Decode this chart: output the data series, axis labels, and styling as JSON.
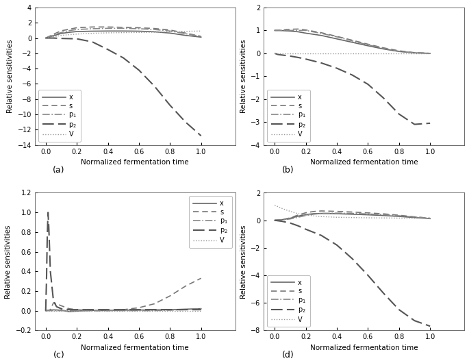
{
  "xlabel": "Normalized fermentation time",
  "ylabel": "Relative sensitivities",
  "legend_labels": [
    "x",
    "s",
    "p1",
    "p2",
    "V"
  ],
  "subplot_a": {
    "xlim": [
      -0.07,
      1.22
    ],
    "ylim": [
      -14,
      4
    ],
    "yticks": [
      -14,
      -12,
      -10,
      -8,
      -6,
      -4,
      -2,
      0,
      2,
      4
    ],
    "xticks": [
      0.0,
      0.2,
      0.4,
      0.6,
      0.8,
      1.0
    ],
    "label": "(a)",
    "legend_loc": "lower left",
    "curves": {
      "x": {
        "t": [
          0.0,
          0.05,
          0.1,
          0.15,
          0.2,
          0.3,
          0.4,
          0.5,
          0.6,
          0.7,
          0.8,
          0.9,
          1.0
        ],
        "v": [
          0.0,
          0.3,
          0.6,
          0.75,
          0.85,
          0.9,
          0.92,
          0.92,
          0.9,
          0.82,
          0.65,
          0.35,
          0.12
        ]
      },
      "s": {
        "t": [
          0.0,
          0.05,
          0.1,
          0.15,
          0.2,
          0.3,
          0.4,
          0.5,
          0.6,
          0.7,
          0.8,
          0.9,
          1.0
        ],
        "v": [
          0.0,
          0.5,
          0.95,
          1.15,
          1.35,
          1.45,
          1.45,
          1.4,
          1.35,
          1.25,
          1.05,
          0.65,
          0.22
        ]
      },
      "p1": {
        "t": [
          0.0,
          0.05,
          0.1,
          0.15,
          0.2,
          0.3,
          0.4,
          0.5,
          0.6,
          0.7,
          0.8,
          0.9,
          1.0
        ],
        "v": [
          0.0,
          0.4,
          0.72,
          0.97,
          1.12,
          1.22,
          1.27,
          1.27,
          1.22,
          1.12,
          0.92,
          0.57,
          0.22
        ]
      },
      "p2": {
        "t": [
          0.0,
          0.05,
          0.1,
          0.2,
          0.3,
          0.4,
          0.5,
          0.6,
          0.7,
          0.8,
          0.9,
          1.0
        ],
        "v": [
          0.0,
          0.0,
          -0.05,
          -0.1,
          -0.5,
          -1.5,
          -2.6,
          -4.2,
          -6.3,
          -8.8,
          -11.0,
          -12.8
        ]
      },
      "V": {
        "t": [
          0.0,
          0.05,
          0.1,
          0.2,
          0.3,
          0.4,
          0.5,
          0.6,
          0.7,
          0.8,
          0.9,
          1.0
        ],
        "v": [
          0.0,
          0.15,
          0.35,
          0.52,
          0.62,
          0.68,
          0.71,
          0.73,
          0.76,
          0.82,
          0.88,
          0.92
        ]
      }
    }
  },
  "subplot_b": {
    "xlim": [
      -0.07,
      1.22
    ],
    "ylim": [
      -4,
      2
    ],
    "yticks": [
      -4,
      -3,
      -2,
      -1,
      0,
      1,
      2
    ],
    "xticks": [
      0.0,
      0.2,
      0.4,
      0.6,
      0.8,
      1.0
    ],
    "label": "(b)",
    "legend_loc": "lower left",
    "curves": {
      "x": {
        "t": [
          0.0,
          0.02,
          0.05,
          0.1,
          0.15,
          0.2,
          0.3,
          0.4,
          0.5,
          0.6,
          0.7,
          0.8,
          0.9,
          1.0
        ],
        "v": [
          1.0,
          1.0,
          0.99,
          0.97,
          0.94,
          0.88,
          0.78,
          0.63,
          0.48,
          0.33,
          0.19,
          0.08,
          0.02,
          0.0
        ]
      },
      "s": {
        "t": [
          0.0,
          0.02,
          0.05,
          0.1,
          0.15,
          0.2,
          0.3,
          0.4,
          0.5,
          0.6,
          0.7,
          0.8,
          0.9,
          1.0
        ],
        "v": [
          1.0,
          1.0,
          1.02,
          1.05,
          1.06,
          1.02,
          0.9,
          0.74,
          0.57,
          0.4,
          0.24,
          0.11,
          0.03,
          0.0
        ]
      },
      "p1": {
        "t": [
          0.0,
          0.02,
          0.05,
          0.1,
          0.15,
          0.2,
          0.3,
          0.4,
          0.5,
          0.6,
          0.7,
          0.8,
          0.9,
          1.0
        ],
        "v": [
          1.0,
          1.0,
          1.0,
          1.0,
          1.0,
          1.0,
          0.87,
          0.72,
          0.54,
          0.37,
          0.22,
          0.09,
          0.02,
          0.0
        ]
      },
      "p2": {
        "t": [
          0.0,
          0.02,
          0.1,
          0.15,
          0.2,
          0.3,
          0.4,
          0.5,
          0.6,
          0.7,
          0.8,
          0.9,
          1.0
        ],
        "v": [
          0.0,
          -0.05,
          -0.12,
          -0.18,
          -0.25,
          -0.42,
          -0.65,
          -0.95,
          -1.35,
          -1.95,
          -2.65,
          -3.1,
          -3.05
        ]
      },
      "V": {
        "t": [
          0.0,
          0.05,
          0.1,
          0.2,
          0.3,
          0.4,
          0.5,
          0.6,
          0.7,
          0.8,
          0.9,
          1.0
        ],
        "v": [
          0.0,
          0.0,
          0.0,
          0.0,
          0.0,
          0.0,
          0.0,
          0.0,
          0.0,
          0.0,
          0.0,
          0.0
        ]
      }
    }
  },
  "subplot_c": {
    "xlim": [
      -0.07,
      1.22
    ],
    "ylim": [
      -0.2,
      1.2
    ],
    "yticks": [
      -0.2,
      0.0,
      0.2,
      0.4,
      0.6,
      0.8,
      1.0,
      1.2
    ],
    "xticks": [
      0.0,
      0.2,
      0.4,
      0.6,
      0.8,
      1.0
    ],
    "label": "(c)",
    "legend_loc": "upper right",
    "curves": {
      "x": {
        "t": [
          0.0,
          0.02,
          0.05,
          0.1,
          0.15,
          0.2,
          0.25,
          0.3,
          0.4,
          0.5,
          0.6,
          0.7,
          0.8,
          0.9,
          1.0
        ],
        "v": [
          0.0,
          0.005,
          0.008,
          0.005,
          -0.01,
          -0.005,
          0.0,
          0.002,
          0.003,
          0.005,
          0.006,
          0.008,
          0.01,
          0.015,
          0.02
        ]
      },
      "s": {
        "t": [
          0.0,
          0.01,
          0.03,
          0.05,
          0.07,
          0.1,
          0.15,
          0.2,
          0.3,
          0.4,
          0.5,
          0.6,
          0.7,
          0.8,
          0.9,
          1.0
        ],
        "v": [
          0.0,
          0.0,
          0.01,
          0.08,
          0.07,
          0.05,
          0.02,
          0.01,
          0.0,
          0.0,
          0.01,
          0.03,
          0.07,
          0.15,
          0.25,
          0.33
        ]
      },
      "p1": {
        "t": [
          0.0,
          0.02,
          0.05,
          0.1,
          0.15,
          0.2,
          0.3,
          0.4,
          0.5,
          0.6,
          0.7,
          0.8,
          0.9,
          1.0
        ],
        "v": [
          0.0,
          0.0,
          0.0,
          0.0,
          0.0,
          0.0,
          0.0,
          0.0,
          0.0,
          0.0,
          0.0,
          0.005,
          0.01,
          0.02
        ]
      },
      "p2": {
        "t": [
          0.0,
          0.005,
          0.01,
          0.015,
          0.02,
          0.03,
          0.05,
          0.07,
          0.1,
          0.15,
          0.2,
          0.3,
          0.5,
          0.7,
          1.0
        ],
        "v": [
          0.0,
          0.3,
          0.75,
          1.0,
          0.85,
          0.4,
          0.1,
          0.04,
          0.02,
          0.01,
          0.01,
          0.01,
          0.01,
          0.01,
          0.01
        ]
      },
      "V": {
        "t": [
          0.0,
          0.05,
          0.1,
          0.2,
          0.3,
          0.4,
          0.5,
          0.6,
          0.7,
          0.8,
          0.9,
          1.0
        ],
        "v": [
          0.0,
          0.0,
          0.0,
          0.0,
          0.0,
          0.0,
          0.0,
          0.0,
          0.0,
          0.0,
          0.0,
          0.0
        ]
      }
    }
  },
  "subplot_d": {
    "xlim": [
      -0.07,
      1.22
    ],
    "ylim": [
      -8,
      2
    ],
    "yticks": [
      -8,
      -6,
      -4,
      -2,
      0,
      2
    ],
    "xticks": [
      0.0,
      0.2,
      0.4,
      0.6,
      0.8,
      1.0
    ],
    "label": "(d)",
    "legend_loc": "lower left",
    "curves": {
      "x": {
        "t": [
          0.0,
          0.05,
          0.1,
          0.15,
          0.2,
          0.25,
          0.3,
          0.4,
          0.5,
          0.6,
          0.7,
          0.8,
          0.9,
          1.0
        ],
        "v": [
          0.0,
          0.05,
          0.15,
          0.3,
          0.42,
          0.48,
          0.5,
          0.48,
          0.44,
          0.4,
          0.35,
          0.28,
          0.2,
          0.12
        ]
      },
      "s": {
        "t": [
          0.0,
          0.05,
          0.1,
          0.15,
          0.2,
          0.25,
          0.3,
          0.4,
          0.5,
          0.6,
          0.7,
          0.8,
          0.9,
          1.0
        ],
        "v": [
          0.0,
          0.05,
          0.18,
          0.38,
          0.55,
          0.64,
          0.68,
          0.65,
          0.6,
          0.54,
          0.47,
          0.37,
          0.25,
          0.15
        ]
      },
      "p1": {
        "t": [
          0.0,
          0.05,
          0.1,
          0.15,
          0.2,
          0.25,
          0.3,
          0.4,
          0.5,
          0.6,
          0.7,
          0.8,
          0.9,
          1.0
        ],
        "v": [
          0.0,
          0.03,
          0.1,
          0.22,
          0.35,
          0.44,
          0.5,
          0.52,
          0.5,
          0.46,
          0.41,
          0.33,
          0.24,
          0.15
        ]
      },
      "p2": {
        "t": [
          0.0,
          0.05,
          0.1,
          0.15,
          0.2,
          0.3,
          0.4,
          0.5,
          0.6,
          0.7,
          0.8,
          0.9,
          1.0
        ],
        "v": [
          0.0,
          -0.08,
          -0.2,
          -0.4,
          -0.65,
          -1.1,
          -1.8,
          -2.8,
          -4.0,
          -5.3,
          -6.5,
          -7.3,
          -7.7
        ]
      },
      "V": {
        "t": [
          0.0,
          0.05,
          0.1,
          0.15,
          0.2,
          0.3,
          0.4,
          0.5,
          0.6,
          0.7,
          0.8,
          0.9,
          1.0
        ],
        "v": [
          1.1,
          0.85,
          0.65,
          0.48,
          0.38,
          0.27,
          0.22,
          0.2,
          0.18,
          0.17,
          0.16,
          0.15,
          0.15
        ]
      }
    }
  }
}
